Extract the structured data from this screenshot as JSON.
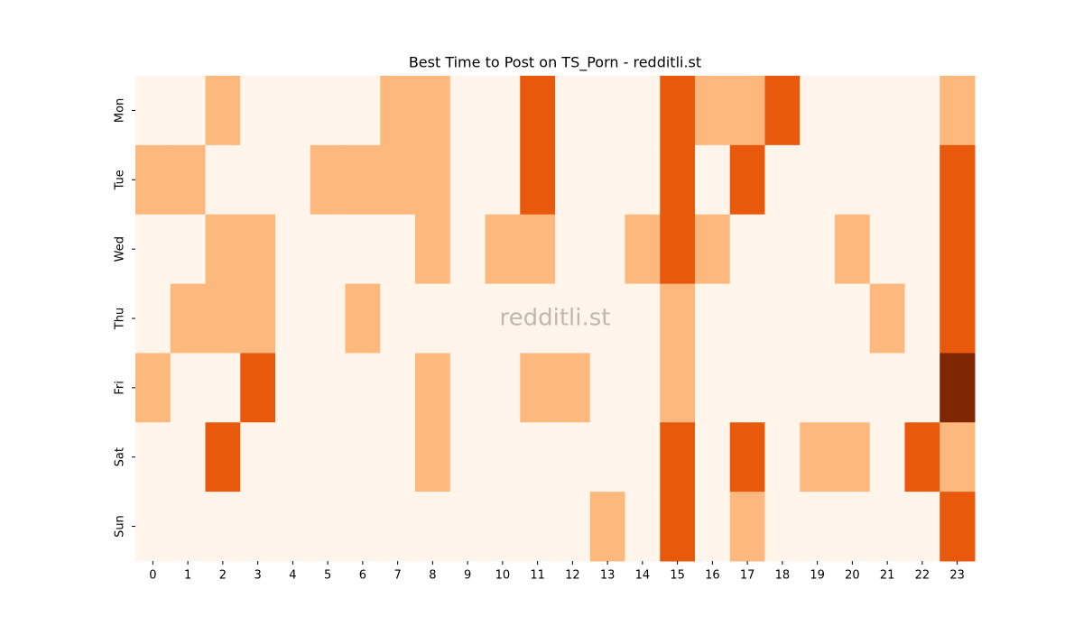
{
  "chart_data": {
    "type": "heatmap",
    "title": "Best Time to Post on TS_Porn - redditli.st",
    "watermark": "redditli.st",
    "x": [
      0,
      1,
      2,
      3,
      4,
      5,
      6,
      7,
      8,
      9,
      10,
      11,
      12,
      13,
      14,
      15,
      16,
      17,
      18,
      19,
      20,
      21,
      22,
      23
    ],
    "y": [
      "Mon",
      "Tue",
      "Wed",
      "Thu",
      "Fri",
      "Sat",
      "Sun"
    ],
    "values": [
      [
        0,
        0,
        1,
        0,
        0,
        0,
        0,
        1,
        1,
        0,
        0,
        2,
        0,
        0,
        0,
        2,
        1,
        1,
        2,
        0,
        0,
        0,
        0,
        1
      ],
      [
        1,
        1,
        0,
        0,
        0,
        1,
        1,
        1,
        1,
        0,
        0,
        2,
        0,
        0,
        0,
        2,
        0,
        2,
        0,
        0,
        0,
        0,
        0,
        2
      ],
      [
        0,
        0,
        1,
        1,
        0,
        0,
        0,
        0,
        1,
        0,
        1,
        1,
        0,
        0,
        1,
        2,
        1,
        0,
        0,
        0,
        1,
        0,
        0,
        2
      ],
      [
        0,
        1,
        1,
        1,
        0,
        0,
        1,
        0,
        0,
        0,
        0,
        0,
        0,
        0,
        0,
        1,
        0,
        0,
        0,
        0,
        0,
        1,
        0,
        2
      ],
      [
        1,
        0,
        0,
        2,
        0,
        0,
        0,
        0,
        1,
        0,
        0,
        1,
        1,
        0,
        0,
        1,
        0,
        0,
        0,
        0,
        0,
        0,
        0,
        3
      ],
      [
        0,
        0,
        2,
        0,
        0,
        0,
        0,
        0,
        1,
        0,
        0,
        0,
        0,
        0,
        0,
        2,
        0,
        2,
        0,
        1,
        1,
        0,
        2,
        1
      ],
      [
        0,
        0,
        0,
        0,
        0,
        0,
        0,
        0,
        0,
        0,
        0,
        0,
        0,
        1,
        0,
        2,
        0,
        1,
        0,
        0,
        0,
        0,
        0,
        2
      ]
    ],
    "colors": [
      "#fff5eb",
      "#fdb97d",
      "#e8590c",
      "#7f2704"
    ]
  }
}
